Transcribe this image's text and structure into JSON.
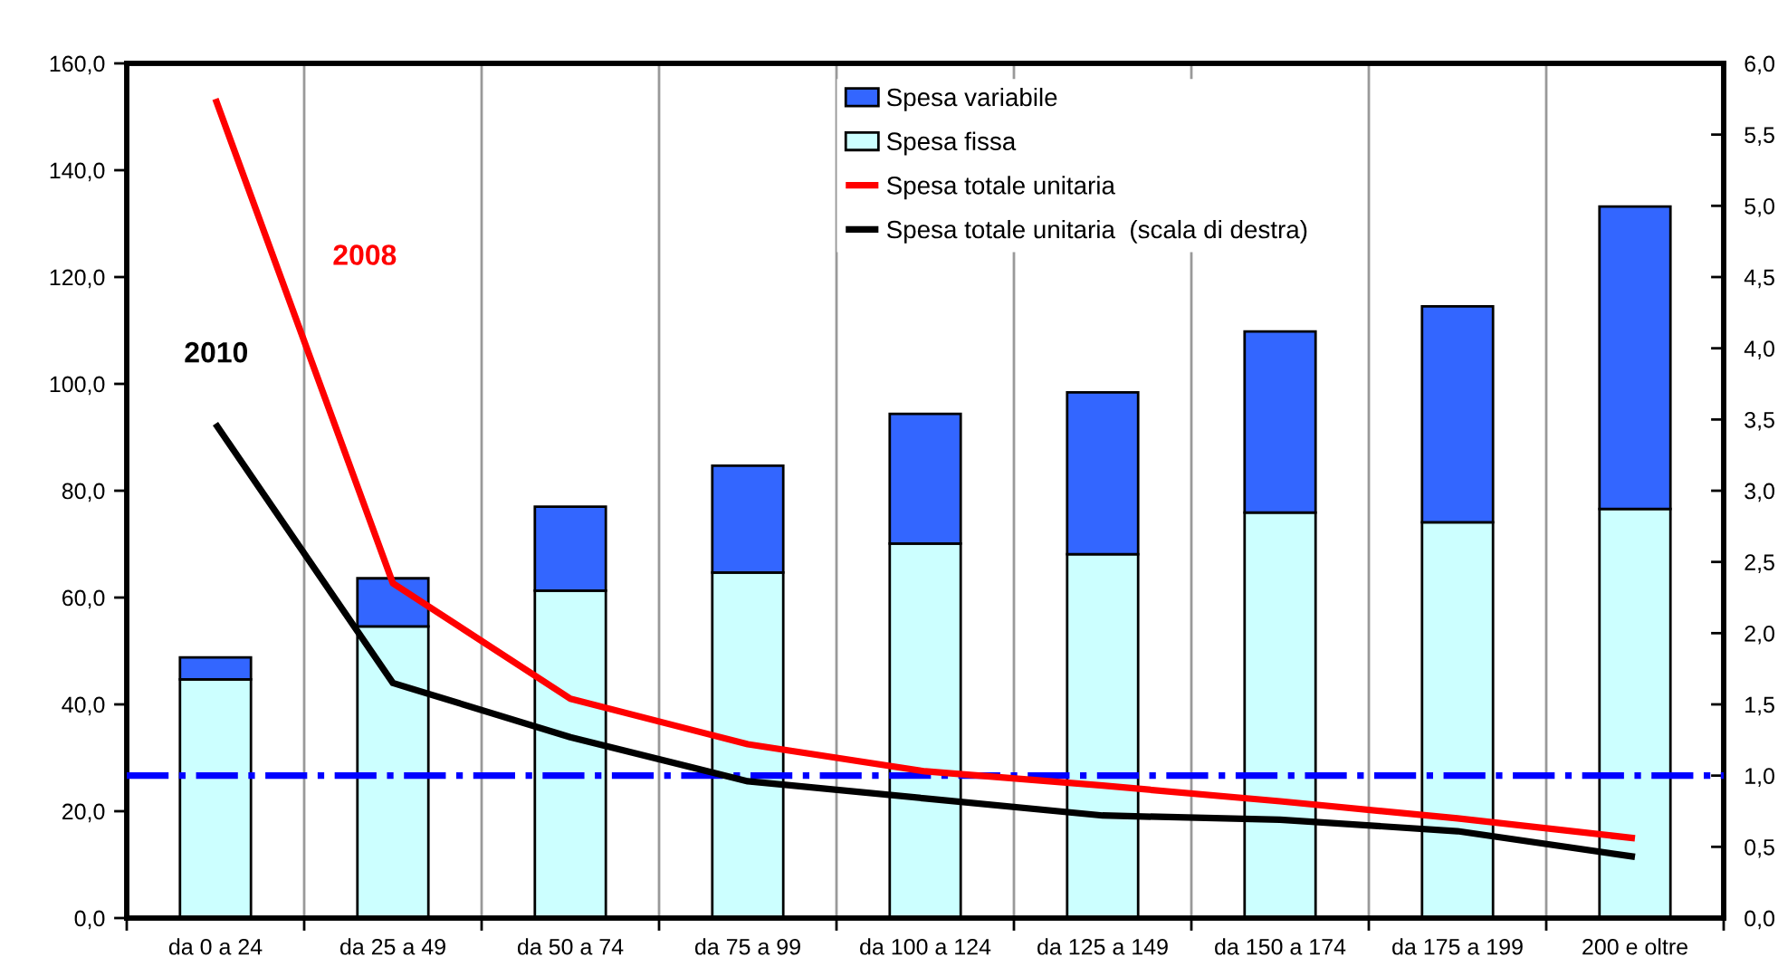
{
  "chart_data": {
    "type": "bar",
    "stacked": true,
    "categories": [
      "da 0 a 24",
      "da 25 a 49",
      "da 50 a 74",
      "da 75 a 99",
      "da 100 a 124",
      "da 125 a 149",
      "da 150 a 174",
      "da 175 a 199",
      "200 e oltre"
    ],
    "series": [
      {
        "name": "Spesa fissa",
        "color": "#ccffff",
        "values": [
          44.7,
          54.6,
          61.3,
          64.7,
          70.1,
          68.1,
          75.9,
          74.1,
          76.6
        ]
      },
      {
        "name": "Spesa variabile",
        "color": "#3366ff",
        "values": [
          4.1,
          9.0,
          15.7,
          20.0,
          24.3,
          30.3,
          33.9,
          40.4,
          56.6
        ]
      },
      {
        "name": "Spesa totale unitaria",
        "type": "line",
        "axis": "y2",
        "color": "#ff0000",
        "values": [
          5.75,
          2.35,
          1.54,
          1.22,
          1.03,
          0.93,
          0.82,
          0.7,
          0.56
        ]
      },
      {
        "name": "Spesa totale unitaria  (scala di destra)",
        "type": "line",
        "axis": "y2",
        "color": "#000000",
        "values": [
          3.47,
          1.65,
          1.27,
          0.96,
          0.84,
          0.72,
          0.69,
          0.61,
          0.43
        ]
      }
    ],
    "ylim": [
      0,
      160
    ],
    "yticks": [
      {
        "value": 0,
        "label": "0,0"
      },
      {
        "value": 20,
        "label": "20,0"
      },
      {
        "value": 40,
        "label": "40,0"
      },
      {
        "value": 60,
        "label": "60,0"
      },
      {
        "value": 80,
        "label": "80,0"
      },
      {
        "value": 100,
        "label": "100,0"
      },
      {
        "value": 120,
        "label": "120,0"
      },
      {
        "value": 140,
        "label": "140,0"
      },
      {
        "value": 160,
        "label": "160,0"
      }
    ],
    "y2lim": [
      0,
      6
    ],
    "y2ticks": [
      {
        "value": 0,
        "label": "0,0"
      },
      {
        "value": 0.5,
        "label": "0,5"
      },
      {
        "value": 1,
        "label": "1,0"
      },
      {
        "value": 1.5,
        "label": "1,5"
      },
      {
        "value": 2,
        "label": "2,0"
      },
      {
        "value": 2.5,
        "label": "2,5"
      },
      {
        "value": 3,
        "label": "3,0"
      },
      {
        "value": 3.5,
        "label": "3,5"
      },
      {
        "value": 4,
        "label": "4,0"
      },
      {
        "value": 4.5,
        "label": "4,5"
      },
      {
        "value": 5,
        "label": "5,0"
      },
      {
        "value": 5.5,
        "label": "5,5"
      },
      {
        "value": 6,
        "label": "6,0"
      }
    ],
    "ref_lines": [
      {
        "axis": "y2",
        "value": 1.0,
        "color": "#0000ff",
        "line_style": "dashdot"
      }
    ],
    "annotations": [
      "2008",
      "2010"
    ],
    "grid": "x",
    "legend": "top"
  }
}
